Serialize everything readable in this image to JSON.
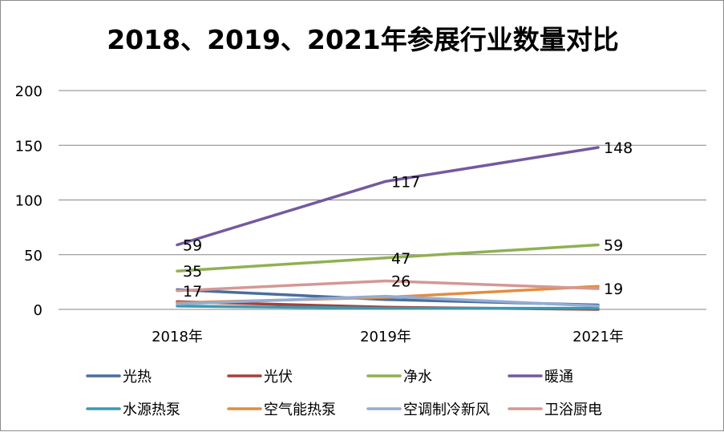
{
  "chart_data": {
    "type": "line",
    "title": "2018、2019、2021年参展行业数量对比",
    "categories": [
      "2018年",
      "2019年",
      "2021年"
    ],
    "ylim": [
      0,
      200
    ],
    "yticks": [
      0,
      50,
      100,
      150,
      200
    ],
    "grid": true,
    "legend_position": "bottom",
    "series": [
      {
        "name": "光热",
        "color": "#4a6e9c",
        "values": [
          18,
          9,
          4
        ],
        "labels": [
          "",
          "",
          ""
        ]
      },
      {
        "name": "光伏",
        "color": "#a5403c",
        "values": [
          7,
          2,
          0
        ],
        "labels": [
          "",
          "",
          ""
        ]
      },
      {
        "name": "净水",
        "color": "#8fb151",
        "values": [
          35,
          47,
          59
        ],
        "labels": [
          "35",
          "47",
          "59"
        ]
      },
      {
        "name": "暖通",
        "color": "#74599e",
        "values": [
          59,
          117,
          148
        ],
        "labels": [
          "59",
          "117",
          "148"
        ]
      },
      {
        "name": "水源热泵",
        "color": "#3a9ab0",
        "values": [
          3,
          1,
          1
        ],
        "labels": [
          "",
          "",
          ""
        ]
      },
      {
        "name": "空气能热泵",
        "color": "#e48c3f",
        "values": [
          6,
          11,
          21
        ],
        "labels": [
          "",
          "",
          ""
        ]
      },
      {
        "name": "空调制冷新风",
        "color": "#94acd3",
        "values": [
          5,
          12,
          3
        ],
        "labels": [
          "",
          "",
          ""
        ]
      },
      {
        "name": "卫浴厨电",
        "color": "#d49895",
        "values": [
          17,
          26,
          19
        ],
        "labels": [
          "17",
          "26",
          "19"
        ]
      }
    ]
  }
}
